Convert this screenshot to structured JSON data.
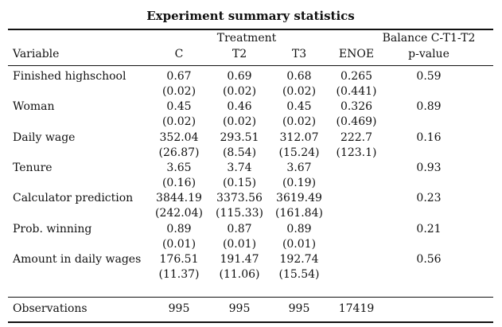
{
  "title": "Experiment summary statistics",
  "header": {
    "treatment": "Treatment",
    "balance": "Balance C-T1-T2",
    "variable": "Variable",
    "cols": [
      "C",
      "T2",
      "T3",
      "ENOE"
    ],
    "pvalue": "p-value"
  },
  "rows": [
    {
      "label": "Finished highschool",
      "vals": [
        "0.67",
        "0.69",
        "0.68",
        "0.265"
      ],
      "ses": [
        "(0.02)",
        "(0.02)",
        "(0.02)",
        "(0.441)"
      ],
      "p": "0.59"
    },
    {
      "label": "Woman",
      "vals": [
        "0.45",
        "0.46",
        "0.45",
        "0.326"
      ],
      "ses": [
        "(0.02)",
        "(0.02)",
        "(0.02)",
        "(0.469)"
      ],
      "p": "0.89"
    },
    {
      "label": "Daily wage",
      "vals": [
        "352.04",
        "293.51",
        "312.07",
        "222.7"
      ],
      "ses": [
        "(26.87)",
        "(8.54)",
        "(15.24)",
        "(123.1)"
      ],
      "p": "0.16"
    },
    {
      "label": "Tenure",
      "vals": [
        "3.65",
        "3.74",
        "3.67",
        ""
      ],
      "ses": [
        "(0.16)",
        "(0.15)",
        "(0.19)",
        ""
      ],
      "p": "0.93"
    },
    {
      "label": "Calculator prediction",
      "vals": [
        "3844.19",
        "3373.56",
        "3619.49",
        ""
      ],
      "ses": [
        "(242.04)",
        "(115.33)",
        "(161.84)",
        ""
      ],
      "p": "0.23"
    },
    {
      "label": "Prob. winning",
      "vals": [
        "0.89",
        "0.87",
        "0.89",
        ""
      ],
      "ses": [
        "(0.01)",
        "(0.01)",
        "(0.01)",
        ""
      ],
      "p": "0.21"
    },
    {
      "label": "Amount in daily wages",
      "vals": [
        "176.51",
        "191.47",
        "192.74",
        ""
      ],
      "ses": [
        "(11.37)",
        "(11.06)",
        "(15.54)",
        ""
      ],
      "p": "0.56"
    }
  ],
  "observations": {
    "label": "Observations",
    "vals": [
      "995",
      "995",
      "995",
      "17419"
    ]
  }
}
